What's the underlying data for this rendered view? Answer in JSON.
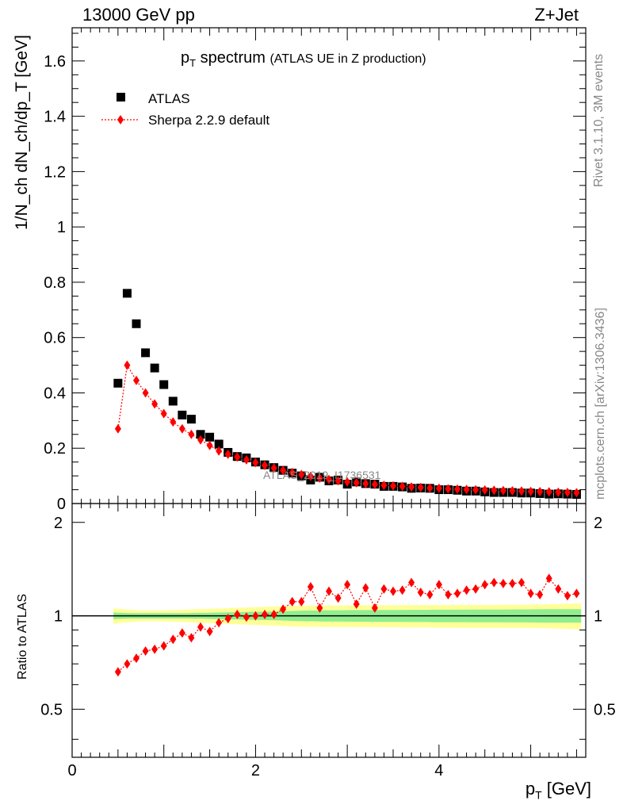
{
  "header": {
    "energy": "13000 GeV pp",
    "process": "Z+Jet"
  },
  "side_labels": {
    "rivet": "Rivet 3.1.10,  3M events",
    "mcplots": "mcplots.cern.ch [arXiv:1306.3436]"
  },
  "watermark": "ATLAS_2019_I1736531",
  "colors": {
    "data": "#000000",
    "mc": "#ff0000",
    "band_inner": "#90ee90",
    "band_outer": "#ffff99"
  },
  "chart_data": [
    {
      "type": "scatter",
      "title": "p_T spectrum",
      "title_main": "p",
      "title_sub": "T",
      "title_rest": " spectrum",
      "title_extra": "(ATLAS UE in Z production)",
      "ylabel": "1/N_ch dN_ch/dp_T [GeV]",
      "xlim": [
        0,
        5.6
      ],
      "ylim": [
        0,
        1.72
      ],
      "yticks": [
        "0",
        "0.2",
        "0.4",
        "0.6",
        "0.8",
        "1",
        "1.2",
        "1.4",
        "1.6"
      ],
      "legend": [
        {
          "name": "ATLAS",
          "marker": "square"
        },
        {
          "name": "Sherpa 2.2.9 default",
          "marker": "diamond"
        }
      ],
      "series": [
        {
          "name": "ATLAS",
          "x": [
            0.5,
            0.6,
            0.7,
            0.8,
            0.9,
            1.0,
            1.1,
            1.2,
            1.3,
            1.4,
            1.5,
            1.6,
            1.7,
            1.8,
            1.9,
            2.0,
            2.1,
            2.2,
            2.3,
            2.4,
            2.5,
            2.6,
            2.7,
            2.8,
            2.9,
            3.0,
            3.1,
            3.2,
            3.3,
            3.4,
            3.5,
            3.6,
            3.7,
            3.8,
            3.9,
            4.0,
            4.1,
            4.2,
            4.3,
            4.4,
            4.5,
            4.6,
            4.7,
            4.8,
            4.9,
            5.0,
            5.1,
            5.2,
            5.3,
            5.4,
            5.5
          ],
          "values": [
            0.435,
            0.76,
            0.65,
            0.545,
            0.49,
            0.43,
            0.37,
            0.32,
            0.305,
            0.25,
            0.24,
            0.215,
            0.185,
            0.17,
            0.165,
            0.15,
            0.14,
            0.13,
            0.12,
            0.11,
            0.1,
            0.085,
            0.095,
            0.082,
            0.085,
            0.07,
            0.078,
            0.072,
            0.07,
            0.062,
            0.062,
            0.06,
            0.055,
            0.056,
            0.055,
            0.05,
            0.05,
            0.048,
            0.045,
            0.045,
            0.042,
            0.04,
            0.04,
            0.04,
            0.038,
            0.038,
            0.036,
            0.034,
            0.035,
            0.034,
            0.033
          ]
        },
        {
          "name": "Sherpa 2.2.9 default",
          "x": [
            0.5,
            0.6,
            0.7,
            0.8,
            0.9,
            1.0,
            1.1,
            1.2,
            1.3,
            1.4,
            1.5,
            1.6,
            1.7,
            1.8,
            1.9,
            2.0,
            2.1,
            2.2,
            2.3,
            2.4,
            2.5,
            2.6,
            2.7,
            2.8,
            2.9,
            3.0,
            3.1,
            3.2,
            3.3,
            3.4,
            3.5,
            3.6,
            3.7,
            3.8,
            3.9,
            4.0,
            4.1,
            4.2,
            4.3,
            4.4,
            4.5,
            4.6,
            4.7,
            4.8,
            4.9,
            5.0,
            5.1,
            5.2,
            5.3,
            5.4,
            5.5
          ],
          "values": [
            0.27,
            0.5,
            0.445,
            0.4,
            0.36,
            0.325,
            0.295,
            0.27,
            0.25,
            0.23,
            0.21,
            0.19,
            0.178,
            0.168,
            0.158,
            0.148,
            0.138,
            0.128,
            0.12,
            0.112,
            0.105,
            0.098,
            0.092,
            0.087,
            0.082,
            0.078,
            0.075,
            0.072,
            0.069,
            0.066,
            0.064,
            0.062,
            0.06,
            0.058,
            0.056,
            0.055,
            0.053,
            0.052,
            0.051,
            0.05,
            0.049,
            0.048,
            0.047,
            0.046,
            0.045,
            0.044,
            0.043,
            0.042,
            0.041,
            0.04,
            0.039
          ]
        }
      ]
    },
    {
      "type": "scatter",
      "ylabel": "Ratio to ATLAS",
      "xlabel": "p_T [GeV]",
      "xlabel_main": "p",
      "xlabel_sub": "T",
      "xlabel_rest": " [GeV]",
      "xlim": [
        0,
        5.6
      ],
      "ylim": [
        0.35,
        2.3
      ],
      "xticks": [
        "0",
        "2",
        "4"
      ],
      "yticks": [
        "0.5",
        "1",
        "2"
      ],
      "reference_line": 1,
      "band": {
        "x": [
          0.45,
          0.55,
          0.65,
          0.75,
          0.85,
          0.95,
          1.05,
          1.15,
          1.25,
          1.35,
          1.45,
          1.55,
          1.65,
          1.75,
          1.85,
          1.95,
          2.05,
          2.15,
          2.25,
          2.35,
          2.45,
          2.55,
          2.65,
          2.75,
          2.85,
          2.95,
          3.05,
          3.15,
          3.25,
          3.35,
          3.45,
          3.55,
          3.65,
          3.75,
          3.85,
          3.95,
          4.05,
          4.15,
          4.25,
          4.35,
          4.45,
          4.55,
          4.65,
          4.75,
          4.85,
          4.95,
          5.05,
          5.15,
          5.25,
          5.35,
          5.45,
          5.55
        ],
        "inner_halfwidth": [
          0.025,
          0.022,
          0.02,
          0.02,
          0.02,
          0.02,
          0.02,
          0.02,
          0.02,
          0.022,
          0.022,
          0.024,
          0.025,
          0.027,
          0.028,
          0.03,
          0.03,
          0.032,
          0.034,
          0.036,
          0.038,
          0.04,
          0.04,
          0.042,
          0.042,
          0.042,
          0.043,
          0.043,
          0.044,
          0.044,
          0.044,
          0.044,
          0.045,
          0.045,
          0.045,
          0.046,
          0.046,
          0.046,
          0.046,
          0.047,
          0.047,
          0.047,
          0.047,
          0.048,
          0.048,
          0.048,
          0.049,
          0.05,
          0.05,
          0.05,
          0.05,
          0.05
        ],
        "outer_halfwidth": [
          0.06,
          0.05,
          0.045,
          0.04,
          0.04,
          0.04,
          0.042,
          0.044,
          0.046,
          0.05,
          0.052,
          0.054,
          0.056,
          0.06,
          0.062,
          0.065,
          0.068,
          0.07,
          0.073,
          0.075,
          0.077,
          0.078,
          0.078,
          0.079,
          0.08,
          0.08,
          0.08,
          0.081,
          0.081,
          0.082,
          0.082,
          0.082,
          0.083,
          0.083,
          0.083,
          0.084,
          0.084,
          0.084,
          0.085,
          0.085,
          0.085,
          0.085,
          0.085,
          0.086,
          0.086,
          0.086,
          0.087,
          0.088,
          0.09,
          0.092,
          0.094,
          0.095
        ]
      },
      "series": [
        {
          "name": "Sherpa 2.2.9 default",
          "x": [
            0.5,
            0.6,
            0.7,
            0.8,
            0.9,
            1.0,
            1.1,
            1.2,
            1.3,
            1.4,
            1.5,
            1.6,
            1.7,
            1.8,
            1.9,
            2.0,
            2.1,
            2.2,
            2.3,
            2.4,
            2.5,
            2.6,
            2.7,
            2.8,
            2.9,
            3.0,
            3.1,
            3.2,
            3.3,
            3.4,
            3.5,
            3.6,
            3.7,
            3.8,
            3.9,
            4.0,
            4.1,
            4.2,
            4.3,
            4.4,
            4.5,
            4.6,
            4.7,
            4.8,
            4.9,
            5.0,
            5.1,
            5.2,
            5.3,
            5.4,
            5.5
          ],
          "values": [
            0.66,
            0.7,
            0.73,
            0.77,
            0.78,
            0.8,
            0.84,
            0.88,
            0.85,
            0.92,
            0.89,
            0.95,
            0.98,
            1.01,
            0.99,
            1.0,
            1.01,
            1.01,
            1.05,
            1.11,
            1.11,
            1.24,
            1.06,
            1.2,
            1.14,
            1.26,
            1.09,
            1.23,
            1.06,
            1.22,
            1.2,
            1.21,
            1.28,
            1.19,
            1.17,
            1.26,
            1.17,
            1.18,
            1.21,
            1.22,
            1.26,
            1.28,
            1.27,
            1.27,
            1.28,
            1.18,
            1.17,
            1.32,
            1.22,
            1.16,
            1.18
          ]
        }
      ]
    }
  ]
}
